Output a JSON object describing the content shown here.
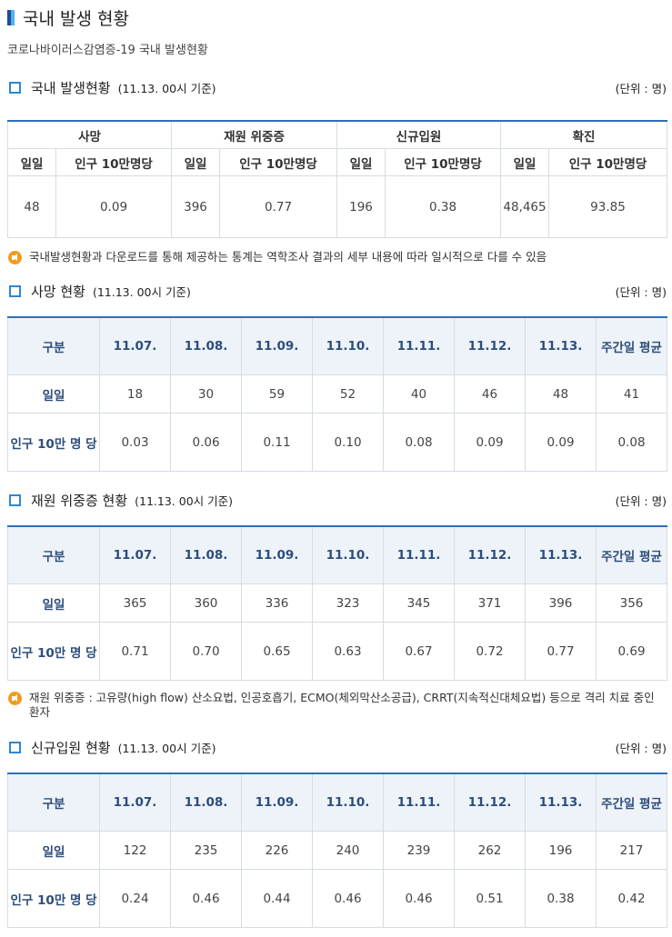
{
  "page": {
    "title": "국내 발생 현황",
    "subtitle": "코로나바이러스감염증-19 국내 발생현황"
  },
  "overview": {
    "title": "국내 발생현황",
    "date": "(11.13. 00시 기준)",
    "unit": "(단위 : 명)",
    "groups": [
      "사망",
      "재원 위중증",
      "신규입원",
      "확진"
    ],
    "sub_daily": "일일",
    "sub_per100k": "인구 10만명당",
    "values": [
      {
        "daily": "48",
        "per100k": "0.09"
      },
      {
        "daily": "396",
        "per100k": "0.77"
      },
      {
        "daily": "196",
        "per100k": "0.38"
      },
      {
        "daily": "48,465",
        "per100k": "93.85"
      }
    ],
    "note": "국내발생현황과 다운로드를 통해 제공하는 통계는 역학조사 결과의 세부 내용에 따라 일시적으로 다를 수 있음"
  },
  "tables": [
    {
      "title": "사망 현황",
      "date": "(11.13. 00시 기준)",
      "unit": "(단위 : 명)",
      "header_label": "구분",
      "dates": [
        "11.07.",
        "11.08.",
        "11.09.",
        "11.10.",
        "11.11.",
        "11.12.",
        "11.13."
      ],
      "avg_label": "주간일 평균",
      "row1_label": "일일",
      "row1": [
        "18",
        "30",
        "59",
        "52",
        "40",
        "46",
        "48",
        "41"
      ],
      "row2_label": "인구 10만 명 당",
      "row2": [
        "0.03",
        "0.06",
        "0.11",
        "0.10",
        "0.08",
        "0.09",
        "0.09",
        "0.08"
      ]
    },
    {
      "title": "재원 위중증 현황",
      "date": "(11.13. 00시 기준)",
      "unit": "(단위 : 명)",
      "header_label": "구분",
      "dates": [
        "11.07.",
        "11.08.",
        "11.09.",
        "11.10.",
        "11.11.",
        "11.12.",
        "11.13."
      ],
      "avg_label": "주간일 평균",
      "row1_label": "일일",
      "row1": [
        "365",
        "360",
        "336",
        "323",
        "345",
        "371",
        "396",
        "356"
      ],
      "row2_label": "인구 10만 명 당",
      "row2": [
        "0.71",
        "0.70",
        "0.65",
        "0.63",
        "0.67",
        "0.72",
        "0.77",
        "0.69"
      ],
      "note": "재원 위중증 : 고유량(high flow) 산소요법, 인공호흡기, ECMO(체외막산소공급), CRRT(지속적신대체요법) 등으로 격리 치료 중인 환자"
    },
    {
      "title": "신규입원 현황",
      "date": "(11.13. 00시 기준)",
      "unit": "(단위 : 명)",
      "header_label": "구분",
      "dates": [
        "11.07.",
        "11.08.",
        "11.09.",
        "11.10.",
        "11.11.",
        "11.12.",
        "11.13."
      ],
      "avg_label": "주간일 평균",
      "row1_label": "일일",
      "row1": [
        "122",
        "235",
        "226",
        "240",
        "239",
        "262",
        "196",
        "217"
      ],
      "row2_label": "인구 10만 명 당",
      "row2": [
        "0.24",
        "0.46",
        "0.44",
        "0.46",
        "0.46",
        "0.51",
        "0.38",
        "0.42"
      ]
    }
  ],
  "colors": {
    "accent_blue": "#2f6fb8",
    "header_text": "#2c4e7c",
    "header_bg": "#eef3f9",
    "note_icon": "#f29a1f"
  },
  "icons": [
    "square-bullet-icon",
    "speaker-icon"
  ]
}
